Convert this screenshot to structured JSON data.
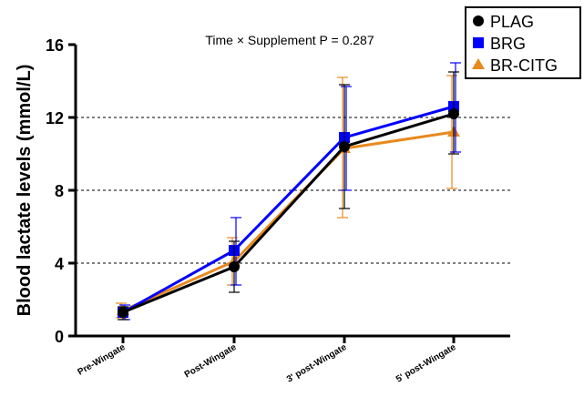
{
  "chart_data": {
    "type": "line",
    "annotation": "Time × Supplement P = 0.287",
    "xlabel": "",
    "ylabel": "Blood lactate levels (mmol/L)",
    "categories": [
      "Pre-Wingate",
      "Post-Wingate",
      "3' post-Wingate",
      "5' post-Wingate"
    ],
    "ylim": [
      0,
      16
    ],
    "yticks": [
      0,
      4,
      8,
      12,
      16
    ],
    "gridlines": [
      4,
      8,
      12
    ],
    "legend_position": "top-right",
    "series": [
      {
        "name": "PLAG",
        "color": "#000000",
        "marker": "circle",
        "values": [
          1.3,
          3.8,
          10.4,
          12.2
        ],
        "err_low": [
          0.9,
          2.4,
          7.0,
          10.0
        ],
        "err_high": [
          1.6,
          5.2,
          13.8,
          14.5
        ]
      },
      {
        "name": "BRG",
        "color": "#0000ff",
        "marker": "square",
        "values": [
          1.3,
          4.7,
          10.9,
          12.6
        ],
        "err_low": [
          0.9,
          2.8,
          8.0,
          10.1
        ],
        "err_high": [
          1.7,
          6.5,
          13.7,
          15.0
        ]
      },
      {
        "name": "BR-CITG",
        "color": "#e8891e",
        "marker": "triangle",
        "values": [
          1.4,
          4.1,
          10.3,
          11.2
        ],
        "err_low": [
          1.0,
          2.8,
          6.5,
          8.1
        ],
        "err_high": [
          1.8,
          5.4,
          14.2,
          14.3
        ]
      }
    ]
  }
}
